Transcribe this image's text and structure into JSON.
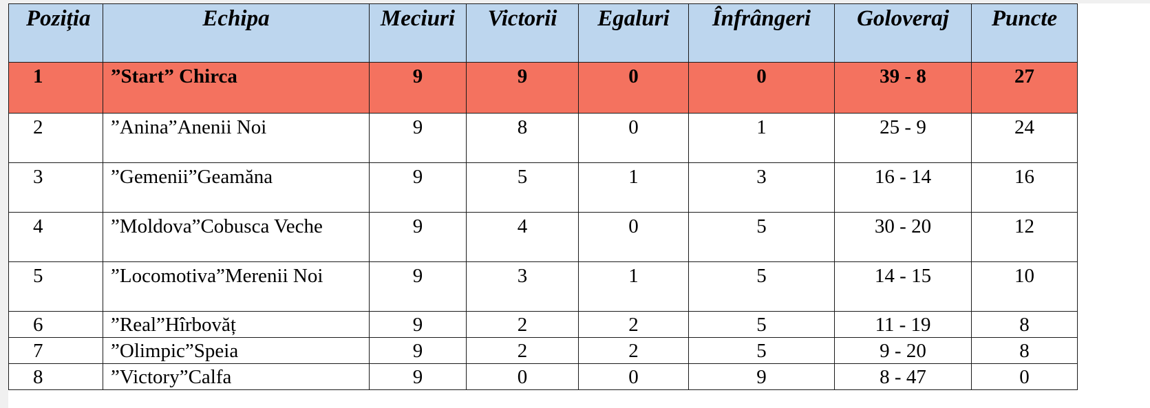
{
  "headers": {
    "position": "Poziția",
    "team": "Echipa",
    "matches": "Meciuri",
    "wins": "Victorii",
    "draws": "Egaluri",
    "losses": "Înfrângeri",
    "goal_diff": "Goloveraj",
    "points": "Puncte"
  },
  "rows": [
    {
      "position": "1",
      "team": "”Start” Chirca",
      "matches": "9",
      "wins": "9",
      "draws": "0",
      "losses": "0",
      "goal_diff": "39 - 8",
      "points": "27"
    },
    {
      "position": "2",
      "team": "”Anina”Anenii Noi",
      "matches": "9",
      "wins": "8",
      "draws": "0",
      "losses": "1",
      "goal_diff": "25 - 9",
      "points": "24"
    },
    {
      "position": "3",
      "team": "”Gemenii”Geamăna",
      "matches": "9",
      "wins": "5",
      "draws": "1",
      "losses": "3",
      "goal_diff": "16 - 14",
      "points": "16"
    },
    {
      "position": "4",
      "team": "”Moldova”Cobusca Veche",
      "matches": "9",
      "wins": "4",
      "draws": "0",
      "losses": "5",
      "goal_diff": "30 - 20",
      "points": "12"
    },
    {
      "position": "5",
      "team": "”Locomotiva”Merenii Noi",
      "matches": "9",
      "wins": "3",
      "draws": "1",
      "losses": "5",
      "goal_diff": "14 - 15",
      "points": "10"
    },
    {
      "position": "6",
      "team": "”Real”Hîrbovăț",
      "matches": "9",
      "wins": "2",
      "draws": "2",
      "losses": "5",
      "goal_diff": "11 - 19",
      "points": "8"
    },
    {
      "position": "7",
      "team": "”Olimpic”Speia",
      "matches": "9",
      "wins": "2",
      "draws": "2",
      "losses": "5",
      "goal_diff": "9 - 20",
      "points": "8"
    },
    {
      "position": "8",
      "team": "”Victory”Calfa",
      "matches": "9",
      "wins": "0",
      "draws": "0",
      "losses": "9",
      "goal_diff": "8 - 47",
      "points": "0"
    }
  ],
  "colors": {
    "header_bg": "#bdd6ee",
    "leader_bg": "#f4725f"
  }
}
